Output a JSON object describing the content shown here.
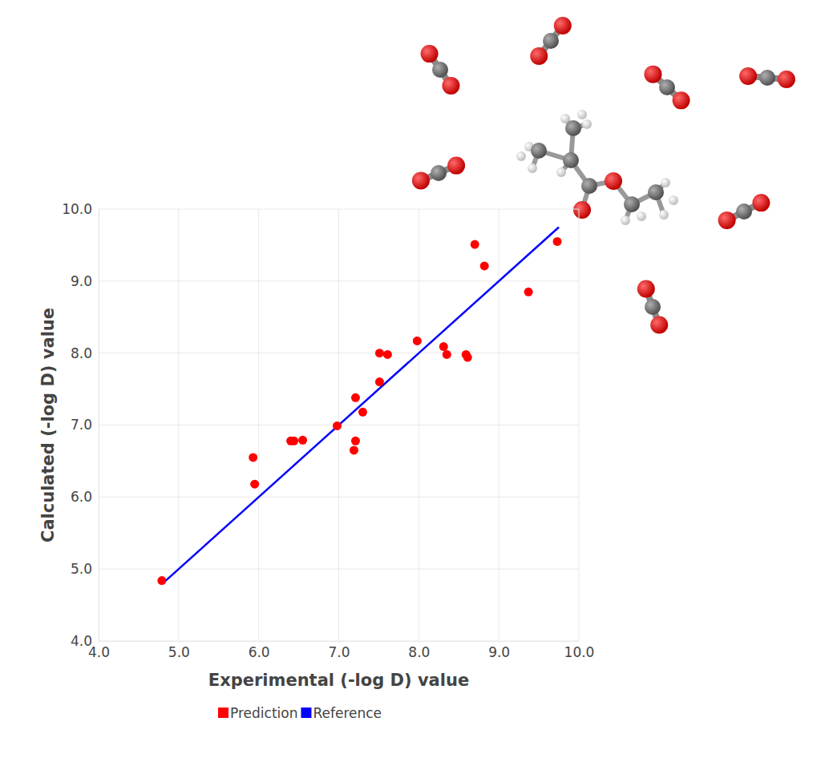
{
  "chart_data": {
    "type": "scatter",
    "x_label": "Experimental (-log D) value",
    "y_label": "Calculated (-log D) value",
    "xlim": [
      4,
      10
    ],
    "ylim": [
      4,
      10
    ],
    "xticks": [
      {
        "value": 4,
        "label": "4.0"
      },
      {
        "value": 5,
        "label": "5.0"
      },
      {
        "value": 6,
        "label": "6.0"
      },
      {
        "value": 7,
        "label": "7.0"
      },
      {
        "value": 8,
        "label": "8.0"
      },
      {
        "value": 9,
        "label": "9.0"
      },
      {
        "value": 10,
        "label": "10.0"
      }
    ],
    "yticks": [
      {
        "value": 4,
        "label": "4.0"
      },
      {
        "value": 5,
        "label": "5.0"
      },
      {
        "value": 6,
        "label": "6.0"
      },
      {
        "value": 7,
        "label": "7.0"
      },
      {
        "value": 8,
        "label": "8.0"
      },
      {
        "value": 9,
        "label": "9.0"
      },
      {
        "value": 10,
        "label": "10.0"
      }
    ],
    "grid": true,
    "legend": "bottom",
    "series": [
      {
        "name": "Prediction",
        "type": "scatter",
        "marker": "circle",
        "color": "#ff0000",
        "x": [
          4.79,
          5.93,
          5.95,
          6.4,
          6.44,
          6.55,
          6.98,
          7.21,
          7.3,
          7.21,
          7.19,
          7.51,
          7.61,
          7.51,
          7.98,
          8.31,
          8.35,
          8.59,
          8.61,
          8.7,
          8.82,
          9.37,
          9.73
        ],
        "values": [
          4.84,
          6.55,
          6.18,
          6.78,
          6.78,
          6.79,
          6.99,
          7.38,
          7.18,
          6.78,
          6.65,
          8.0,
          7.98,
          7.6,
          8.17,
          8.09,
          7.98,
          7.98,
          7.94,
          9.51,
          9.21,
          8.85,
          9.55
        ]
      },
      {
        "name": "Reference",
        "type": "line",
        "line_style": "solid",
        "color": "#0000ff",
        "x": [
          4.8,
          9.75
        ],
        "values": [
          4.8,
          9.75
        ]
      }
    ]
  }
}
